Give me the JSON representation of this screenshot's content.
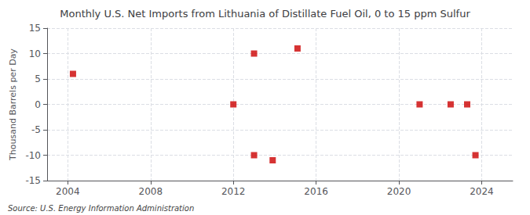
{
  "chart_data": {
    "type": "scatter",
    "title": "Monthly U.S. Net Imports from Lithuania of Distillate Fuel Oil, 0 to 15 ppm Sulfur",
    "ylabel": "Thousand Barrels per Day",
    "source": "Source: U.S. Energy Information Administration",
    "x": [
      2004.25,
      2012.0,
      2013.0,
      2013.0,
      2013.9,
      2015.1,
      2021.0,
      2022.5,
      2023.3,
      2023.7
    ],
    "values": [
      6,
      0,
      10,
      -10,
      -11,
      11,
      0,
      0,
      0,
      -10
    ],
    "color": "#cc0000",
    "marker": "square",
    "xlim": [
      2003.0,
      2025.5
    ],
    "ylim": [
      -15,
      15
    ],
    "xticks": [
      2004,
      2008,
      2012,
      2016,
      2020,
      2024
    ],
    "yticks": [
      -15,
      -10,
      -5,
      0,
      5,
      10,
      15
    ],
    "grid": true
  }
}
